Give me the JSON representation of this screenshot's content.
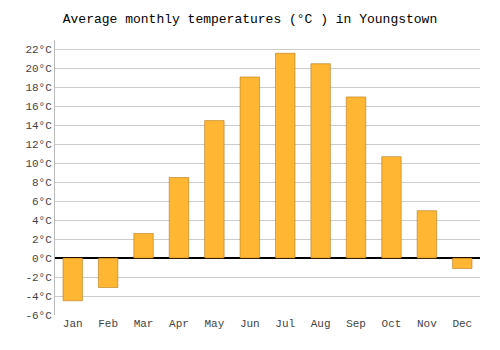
{
  "chart_data": {
    "type": "bar",
    "title": "Average monthly temperatures (°C ) in Youngstown",
    "categories": [
      "Jan",
      "Feb",
      "Mar",
      "Apr",
      "May",
      "Jun",
      "Jul",
      "Aug",
      "Sep",
      "Oct",
      "Nov",
      "Dec"
    ],
    "values": [
      -4.5,
      -3.1,
      2.6,
      8.5,
      14.5,
      19.1,
      21.6,
      20.5,
      17.0,
      10.7,
      5.0,
      -1.1
    ],
    "color": "#FFB733",
    "ylim": [
      -6,
      23
    ],
    "yticks": [
      {
        "value": -6,
        "label": "-6°C"
      },
      {
        "value": -4,
        "label": "-4°C"
      },
      {
        "value": -2,
        "label": "-2°C"
      },
      {
        "value": 0,
        "label": "0°C"
      },
      {
        "value": 2,
        "label": "2°C"
      },
      {
        "value": 4,
        "label": "4°C"
      },
      {
        "value": 6,
        "label": "6°C"
      },
      {
        "value": 8,
        "label": "8°C"
      },
      {
        "value": 10,
        "label": "10°C"
      },
      {
        "value": 12,
        "label": "12°C"
      },
      {
        "value": 14,
        "label": "14°C"
      },
      {
        "value": 16,
        "label": "16°C"
      },
      {
        "value": 18,
        "label": "18°C"
      },
      {
        "value": 20,
        "label": "20°C"
      },
      {
        "value": 22,
        "label": "22°C"
      }
    ],
    "grid": true
  }
}
